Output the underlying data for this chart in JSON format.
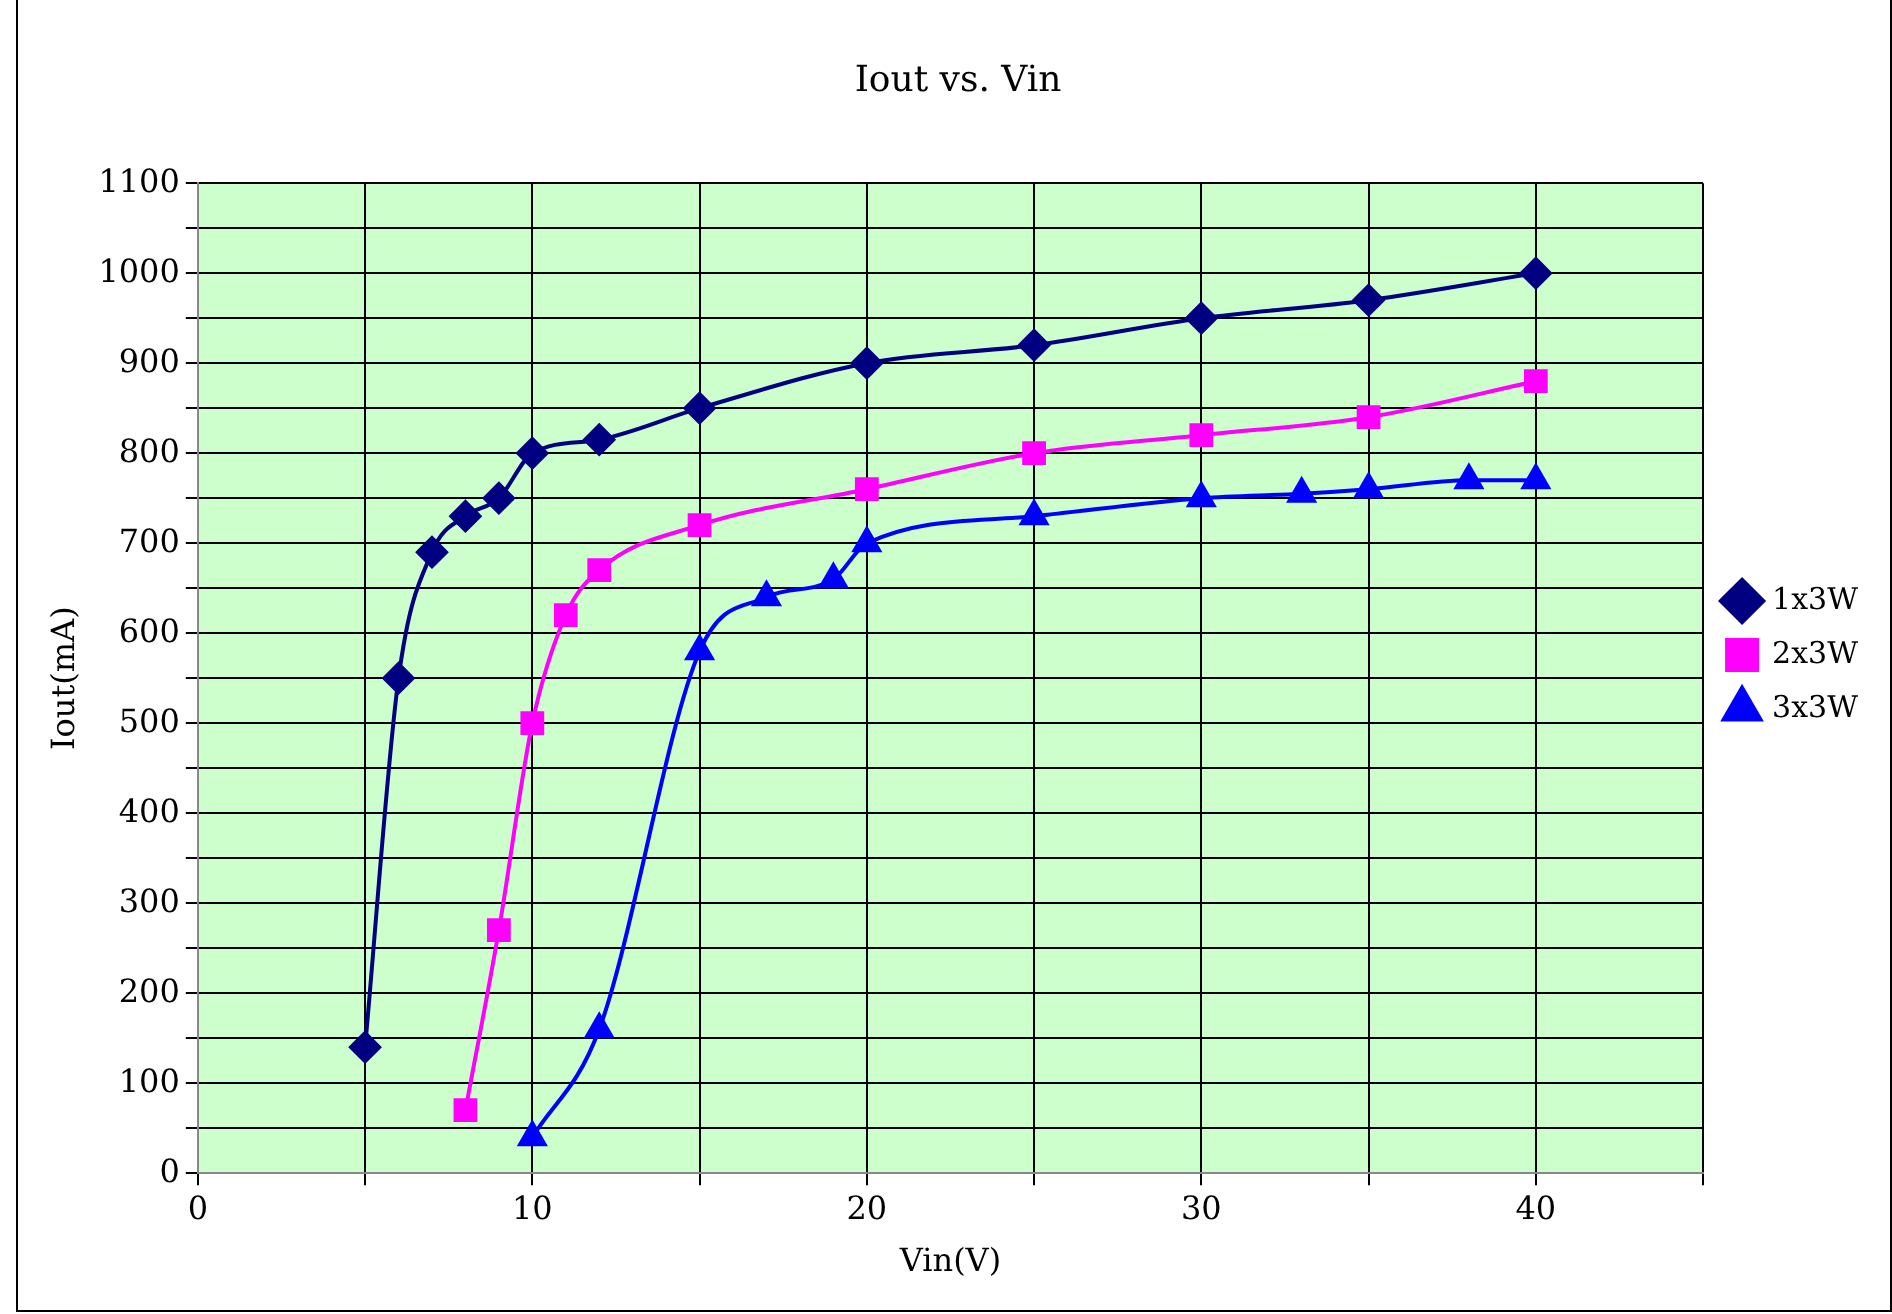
{
  "chart_data": {
    "type": "line",
    "title": "Iout vs. Vin",
    "xlabel": "Vin(V)",
    "ylabel": "Iout(mA)",
    "xlim": [
      0,
      45
    ],
    "xticks": [
      0,
      {
        "value": 5,
        "label": null
      },
      10,
      {
        "value": 15,
        "label": null
      },
      20,
      {
        "value": 25,
        "label": null
      },
      30,
      {
        "value": 35,
        "label": null
      },
      40,
      {
        "value": 45,
        "label": null
      }
    ],
    "ylim": [
      0,
      1100
    ],
    "yticks": [
      0,
      {
        "value": 50,
        "label": null
      },
      100,
      {
        "value": 150,
        "label": null
      },
      200,
      {
        "value": 250,
        "label": null
      },
      300,
      {
        "value": 350,
        "label": null
      },
      400,
      {
        "value": 450,
        "label": null
      },
      500,
      {
        "value": 550,
        "label": null
      },
      600,
      {
        "value": 650,
        "label": null
      },
      700,
      {
        "value": 750,
        "label": null
      },
      800,
      {
        "value": 850,
        "label": null
      },
      900,
      {
        "value": 950,
        "label": null
      },
      1000,
      {
        "value": 1050,
        "label": null
      },
      1100
    ],
    "grid": true,
    "legend": "right",
    "line_style": "solid",
    "series": [
      {
        "name": "1x3W",
        "color": "#000080",
        "marker": "diamond",
        "x": [
          5,
          6,
          7,
          8,
          9,
          10,
          12,
          15,
          20,
          25,
          30,
          35,
          40
        ],
        "values": [
          140,
          550,
          690,
          730,
          750,
          800,
          815,
          850,
          900,
          920,
          950,
          970,
          1000
        ]
      },
      {
        "name": "2x3W",
        "color": "#ff00ff",
        "marker": "square",
        "x": [
          8,
          9,
          10,
          11,
          12,
          15,
          20,
          25,
          30,
          35,
          40
        ],
        "values": [
          70,
          270,
          500,
          620,
          670,
          720,
          760,
          800,
          820,
          840,
          880
        ]
      },
      {
        "name": "3x3W",
        "color": "#0000ff",
        "marker": "triangle",
        "x": [
          10,
          12,
          15,
          17,
          19,
          20,
          25,
          30,
          33,
          35,
          38,
          40
        ],
        "values": [
          40,
          160,
          580,
          640,
          660,
          700,
          730,
          750,
          755,
          760,
          770,
          770
        ]
      }
    ]
  }
}
